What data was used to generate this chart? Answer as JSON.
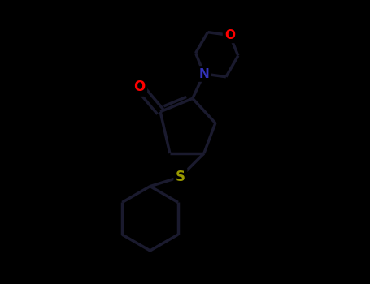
{
  "bg_color": "#000000",
  "bond_color": "#1a1a2e",
  "bond_width": 2.5,
  "atom_colors": {
    "O_carbonyl": "#ff0000",
    "O_morpholine": "#ff0000",
    "N": "#3333bb",
    "S": "#999900",
    "C": "#1a1a2e"
  },
  "figsize": [
    4.55,
    3.5
  ],
  "dpi": 100,
  "xlim": [
    -3.5,
    3.5
  ],
  "ylim": [
    -4.0,
    3.5
  ]
}
